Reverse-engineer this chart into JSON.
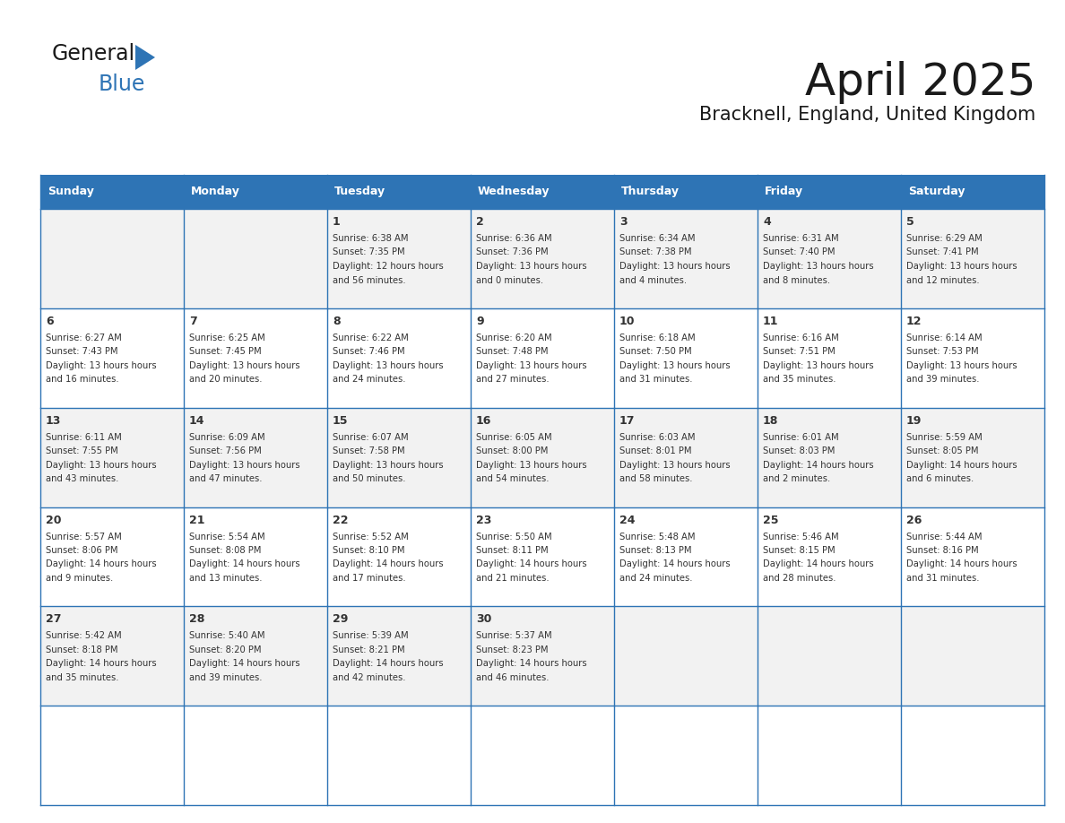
{
  "title": "April 2025",
  "subtitle": "Bracknell, England, United Kingdom",
  "header_bg": "#2e74b5",
  "header_text_color": "#ffffff",
  "cell_bg_odd": "#f2f2f2",
  "cell_bg_even": "#ffffff",
  "border_color": "#2e74b5",
  "day_names": [
    "Sunday",
    "Monday",
    "Tuesday",
    "Wednesday",
    "Thursday",
    "Friday",
    "Saturday"
  ],
  "title_color": "#1a1a1a",
  "subtitle_color": "#1a1a1a",
  "text_color": "#333333",
  "days": [
    {
      "date": "",
      "sunrise": "",
      "sunset": "",
      "daylight": ""
    },
    {
      "date": "",
      "sunrise": "",
      "sunset": "",
      "daylight": ""
    },
    {
      "date": "1",
      "sunrise": "6:38 AM",
      "sunset": "7:35 PM",
      "daylight": "12 hours and 56 minutes."
    },
    {
      "date": "2",
      "sunrise": "6:36 AM",
      "sunset": "7:36 PM",
      "daylight": "13 hours and 0 minutes."
    },
    {
      "date": "3",
      "sunrise": "6:34 AM",
      "sunset": "7:38 PM",
      "daylight": "13 hours and 4 minutes."
    },
    {
      "date": "4",
      "sunrise": "6:31 AM",
      "sunset": "7:40 PM",
      "daylight": "13 hours and 8 minutes."
    },
    {
      "date": "5",
      "sunrise": "6:29 AM",
      "sunset": "7:41 PM",
      "daylight": "13 hours and 12 minutes."
    },
    {
      "date": "6",
      "sunrise": "6:27 AM",
      "sunset": "7:43 PM",
      "daylight": "13 hours and 16 minutes."
    },
    {
      "date": "7",
      "sunrise": "6:25 AM",
      "sunset": "7:45 PM",
      "daylight": "13 hours and 20 minutes."
    },
    {
      "date": "8",
      "sunrise": "6:22 AM",
      "sunset": "7:46 PM",
      "daylight": "13 hours and 24 minutes."
    },
    {
      "date": "9",
      "sunrise": "6:20 AM",
      "sunset": "7:48 PM",
      "daylight": "13 hours and 27 minutes."
    },
    {
      "date": "10",
      "sunrise": "6:18 AM",
      "sunset": "7:50 PM",
      "daylight": "13 hours and 31 minutes."
    },
    {
      "date": "11",
      "sunrise": "6:16 AM",
      "sunset": "7:51 PM",
      "daylight": "13 hours and 35 minutes."
    },
    {
      "date": "12",
      "sunrise": "6:14 AM",
      "sunset": "7:53 PM",
      "daylight": "13 hours and 39 minutes."
    },
    {
      "date": "13",
      "sunrise": "6:11 AM",
      "sunset": "7:55 PM",
      "daylight": "13 hours and 43 minutes."
    },
    {
      "date": "14",
      "sunrise": "6:09 AM",
      "sunset": "7:56 PM",
      "daylight": "13 hours and 47 minutes."
    },
    {
      "date": "15",
      "sunrise": "6:07 AM",
      "sunset": "7:58 PM",
      "daylight": "13 hours and 50 minutes."
    },
    {
      "date": "16",
      "sunrise": "6:05 AM",
      "sunset": "8:00 PM",
      "daylight": "13 hours and 54 minutes."
    },
    {
      "date": "17",
      "sunrise": "6:03 AM",
      "sunset": "8:01 PM",
      "daylight": "13 hours and 58 minutes."
    },
    {
      "date": "18",
      "sunrise": "6:01 AM",
      "sunset": "8:03 PM",
      "daylight": "14 hours and 2 minutes."
    },
    {
      "date": "19",
      "sunrise": "5:59 AM",
      "sunset": "8:05 PM",
      "daylight": "14 hours and 6 minutes."
    },
    {
      "date": "20",
      "sunrise": "5:57 AM",
      "sunset": "8:06 PM",
      "daylight": "14 hours and 9 minutes."
    },
    {
      "date": "21",
      "sunrise": "5:54 AM",
      "sunset": "8:08 PM",
      "daylight": "14 hours and 13 minutes."
    },
    {
      "date": "22",
      "sunrise": "5:52 AM",
      "sunset": "8:10 PM",
      "daylight": "14 hours and 17 minutes."
    },
    {
      "date": "23",
      "sunrise": "5:50 AM",
      "sunset": "8:11 PM",
      "daylight": "14 hours and 21 minutes."
    },
    {
      "date": "24",
      "sunrise": "5:48 AM",
      "sunset": "8:13 PM",
      "daylight": "14 hours and 24 minutes."
    },
    {
      "date": "25",
      "sunrise": "5:46 AM",
      "sunset": "8:15 PM",
      "daylight": "14 hours and 28 minutes."
    },
    {
      "date": "26",
      "sunrise": "5:44 AM",
      "sunset": "8:16 PM",
      "daylight": "14 hours and 31 minutes."
    },
    {
      "date": "27",
      "sunrise": "5:42 AM",
      "sunset": "8:18 PM",
      "daylight": "14 hours and 35 minutes."
    },
    {
      "date": "28",
      "sunrise": "5:40 AM",
      "sunset": "8:20 PM",
      "daylight": "14 hours and 39 minutes."
    },
    {
      "date": "29",
      "sunrise": "5:39 AM",
      "sunset": "8:21 PM",
      "daylight": "14 hours and 42 minutes."
    },
    {
      "date": "30",
      "sunrise": "5:37 AM",
      "sunset": "8:23 PM",
      "daylight": "14 hours and 46 minutes."
    },
    {
      "date": "",
      "sunrise": "",
      "sunset": "",
      "daylight": ""
    },
    {
      "date": "",
      "sunrise": "",
      "sunset": "",
      "daylight": ""
    },
    {
      "date": "",
      "sunrise": "",
      "sunset": "",
      "daylight": ""
    },
    {
      "date": "",
      "sunrise": "",
      "sunset": "",
      "daylight": ""
    }
  ]
}
